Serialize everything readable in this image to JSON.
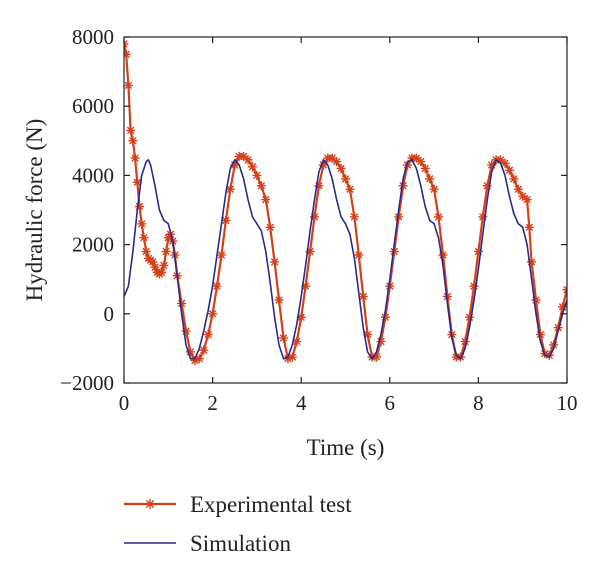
{
  "chart_data": {
    "type": "line",
    "xlabel": "Time (s)",
    "ylabel": "Hydraulic force (N)",
    "xlim": [
      0,
      10
    ],
    "ylim": [
      -2000,
      8000
    ],
    "xticks": [
      0,
      2,
      4,
      6,
      8,
      10
    ],
    "yticks": [
      -2000,
      0,
      2000,
      4000,
      6000,
      8000
    ],
    "grid": false,
    "legend_position": "bottom",
    "series": [
      {
        "name": "Experimental test",
        "color": "#d4401a",
        "marker": "asterisk",
        "points": [
          [
            0.0,
            7800
          ],
          [
            0.05,
            7500
          ],
          [
            0.1,
            6600
          ],
          [
            0.15,
            5300
          ],
          [
            0.2,
            5000
          ],
          [
            0.25,
            4500
          ],
          [
            0.3,
            3800
          ],
          [
            0.35,
            3100
          ],
          [
            0.4,
            2600
          ],
          [
            0.45,
            2200
          ],
          [
            0.5,
            1800
          ],
          [
            0.55,
            1600
          ],
          [
            0.6,
            1550
          ],
          [
            0.65,
            1500
          ],
          [
            0.7,
            1350
          ],
          [
            0.75,
            1200
          ],
          [
            0.8,
            1150
          ],
          [
            0.85,
            1200
          ],
          [
            0.9,
            1400
          ],
          [
            0.95,
            1800
          ],
          [
            1.0,
            2200
          ],
          [
            1.05,
            2300
          ],
          [
            1.1,
            2100
          ],
          [
            1.15,
            1700
          ],
          [
            1.2,
            1100
          ],
          [
            1.3,
            300
          ],
          [
            1.4,
            -500
          ],
          [
            1.5,
            -1100
          ],
          [
            1.6,
            -1350
          ],
          [
            1.7,
            -1300
          ],
          [
            1.8,
            -1050
          ],
          [
            1.9,
            -600
          ],
          [
            2.0,
            0
          ],
          [
            2.1,
            800
          ],
          [
            2.2,
            1700
          ],
          [
            2.3,
            2700
          ],
          [
            2.4,
            3600
          ],
          [
            2.5,
            4300
          ],
          [
            2.6,
            4550
          ],
          [
            2.7,
            4550
          ],
          [
            2.8,
            4450
          ],
          [
            2.9,
            4250
          ],
          [
            3.0,
            4000
          ],
          [
            3.1,
            3700
          ],
          [
            3.2,
            3300
          ],
          [
            3.3,
            2500
          ],
          [
            3.4,
            1500
          ],
          [
            3.5,
            400
          ],
          [
            3.6,
            -700
          ],
          [
            3.7,
            -1300
          ],
          [
            3.8,
            -1250
          ],
          [
            3.9,
            -800
          ],
          [
            4.0,
            -100
          ],
          [
            4.1,
            800
          ],
          [
            4.2,
            1800
          ],
          [
            4.3,
            2800
          ],
          [
            4.4,
            3700
          ],
          [
            4.5,
            4300
          ],
          [
            4.6,
            4500
          ],
          [
            4.7,
            4500
          ],
          [
            4.8,
            4400
          ],
          [
            4.9,
            4200
          ],
          [
            5.0,
            3900
          ],
          [
            5.1,
            3600
          ],
          [
            5.2,
            2800
          ],
          [
            5.3,
            1700
          ],
          [
            5.4,
            500
          ],
          [
            5.5,
            -600
          ],
          [
            5.6,
            -1250
          ],
          [
            5.7,
            -1250
          ],
          [
            5.8,
            -800
          ],
          [
            5.9,
            -100
          ],
          [
            6.0,
            800
          ],
          [
            6.1,
            1800
          ],
          [
            6.2,
            2800
          ],
          [
            6.3,
            3700
          ],
          [
            6.4,
            4300
          ],
          [
            6.5,
            4500
          ],
          [
            6.6,
            4500
          ],
          [
            6.7,
            4400
          ],
          [
            6.8,
            4200
          ],
          [
            6.9,
            3900
          ],
          [
            7.0,
            3600
          ],
          [
            7.1,
            2800
          ],
          [
            7.2,
            1700
          ],
          [
            7.3,
            500
          ],
          [
            7.4,
            -600
          ],
          [
            7.5,
            -1250
          ],
          [
            7.6,
            -1250
          ],
          [
            7.7,
            -800
          ],
          [
            7.8,
            -100
          ],
          [
            7.9,
            800
          ],
          [
            8.0,
            1800
          ],
          [
            8.1,
            2800
          ],
          [
            8.2,
            3700
          ],
          [
            8.3,
            4300
          ],
          [
            8.4,
            4450
          ],
          [
            8.5,
            4450
          ],
          [
            8.6,
            4350
          ],
          [
            8.7,
            4150
          ],
          [
            8.8,
            3900
          ],
          [
            8.9,
            3600
          ],
          [
            9.0,
            3400
          ],
          [
            9.1,
            3300
          ],
          [
            9.15,
            2500
          ],
          [
            9.2,
            1500
          ],
          [
            9.3,
            400
          ],
          [
            9.4,
            -600
          ],
          [
            9.5,
            -1150
          ],
          [
            9.6,
            -1200
          ],
          [
            9.7,
            -900
          ],
          [
            9.8,
            -400
          ],
          [
            9.9,
            200
          ],
          [
            10.0,
            700
          ]
        ]
      },
      {
        "name": "Simulation",
        "color": "#2a2a8c",
        "marker": "none",
        "points": [
          [
            0.0,
            500
          ],
          [
            0.1,
            800
          ],
          [
            0.2,
            1800
          ],
          [
            0.3,
            3000
          ],
          [
            0.4,
            4000
          ],
          [
            0.5,
            4400
          ],
          [
            0.55,
            4450
          ],
          [
            0.6,
            4300
          ],
          [
            0.7,
            3700
          ],
          [
            0.8,
            3000
          ],
          [
            0.9,
            2700
          ],
          [
            1.0,
            2600
          ],
          [
            1.1,
            2100
          ],
          [
            1.2,
            1100
          ],
          [
            1.3,
            0
          ],
          [
            1.4,
            -900
          ],
          [
            1.5,
            -1300
          ],
          [
            1.6,
            -1300
          ],
          [
            1.7,
            -1000
          ],
          [
            1.8,
            -500
          ],
          [
            1.9,
            100
          ],
          [
            2.0,
            800
          ],
          [
            2.1,
            1700
          ],
          [
            2.2,
            2600
          ],
          [
            2.3,
            3500
          ],
          [
            2.4,
            4200
          ],
          [
            2.5,
            4450
          ],
          [
            2.6,
            4300
          ],
          [
            2.7,
            3900
          ],
          [
            2.8,
            3300
          ],
          [
            2.9,
            2800
          ],
          [
            3.0,
            2600
          ],
          [
            3.1,
            2400
          ],
          [
            3.2,
            1800
          ],
          [
            3.3,
            900
          ],
          [
            3.4,
            -100
          ],
          [
            3.5,
            -900
          ],
          [
            3.6,
            -1300
          ],
          [
            3.7,
            -1250
          ],
          [
            3.8,
            -900
          ],
          [
            3.9,
            -300
          ],
          [
            4.0,
            500
          ],
          [
            4.1,
            1400
          ],
          [
            4.2,
            2400
          ],
          [
            4.3,
            3300
          ],
          [
            4.4,
            4100
          ],
          [
            4.5,
            4450
          ],
          [
            4.6,
            4300
          ],
          [
            4.7,
            3900
          ],
          [
            4.8,
            3300
          ],
          [
            4.9,
            2800
          ],
          [
            5.0,
            2600
          ],
          [
            5.1,
            2300
          ],
          [
            5.2,
            1600
          ],
          [
            5.3,
            600
          ],
          [
            5.4,
            -400
          ],
          [
            5.5,
            -1100
          ],
          [
            5.6,
            -1300
          ],
          [
            5.7,
            -1100
          ],
          [
            5.8,
            -600
          ],
          [
            5.9,
            100
          ],
          [
            6.0,
            1000
          ],
          [
            6.1,
            2000
          ],
          [
            6.2,
            3000
          ],
          [
            6.3,
            3900
          ],
          [
            6.4,
            4400
          ],
          [
            6.5,
            4450
          ],
          [
            6.6,
            4200
          ],
          [
            6.7,
            3700
          ],
          [
            6.8,
            3100
          ],
          [
            6.9,
            2700
          ],
          [
            7.0,
            2600
          ],
          [
            7.1,
            2200
          ],
          [
            7.2,
            1400
          ],
          [
            7.3,
            300
          ],
          [
            7.4,
            -700
          ],
          [
            7.5,
            -1200
          ],
          [
            7.6,
            -1300
          ],
          [
            7.7,
            -1000
          ],
          [
            7.8,
            -400
          ],
          [
            7.9,
            400
          ],
          [
            8.0,
            1300
          ],
          [
            8.1,
            2300
          ],
          [
            8.2,
            3300
          ],
          [
            8.3,
            4100
          ],
          [
            8.4,
            4450
          ],
          [
            8.5,
            4350
          ],
          [
            8.6,
            4000
          ],
          [
            8.7,
            3400
          ],
          [
            8.8,
            2900
          ],
          [
            8.9,
            2600
          ],
          [
            9.0,
            2500
          ],
          [
            9.1,
            2000
          ],
          [
            9.2,
            1000
          ],
          [
            9.3,
            0
          ],
          [
            9.4,
            -800
          ],
          [
            9.5,
            -1200
          ],
          [
            9.6,
            -1250
          ],
          [
            9.7,
            -1000
          ],
          [
            9.8,
            -500
          ],
          [
            9.9,
            0
          ],
          [
            10.0,
            400
          ]
        ]
      }
    ]
  }
}
